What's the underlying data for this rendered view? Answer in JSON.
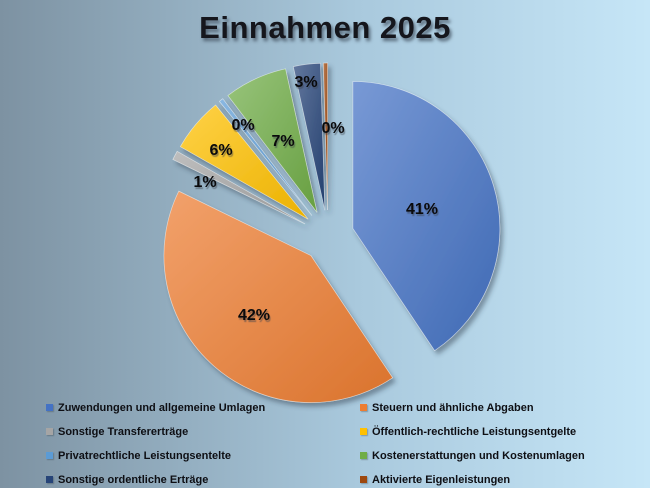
{
  "title": "Einnahmen 2025",
  "background": {
    "gradient_left": "#7D92A2",
    "gradient_mid": "#A9C9DD",
    "gradient_right": "#C6E6F7"
  },
  "chart_data": {
    "type": "pie",
    "style": "exploded",
    "title": "Einnahmen 2025",
    "unit": "percent",
    "categories": [
      "Zuwendungen und allgemeine Umlagen",
      "Steuern und ähnliche Abgaben",
      "Sonstige Transfererträge",
      "Öffentlich-rechtliche Leistungsentgelte",
      "Privatrechtliche Leistungsentelte",
      "Kostenerstattungen und Kostenumlagen",
      "Sonstige ordentliche Erträge",
      "Aktivierte Eigenleistungen"
    ],
    "values": [
      41,
      42,
      1,
      6,
      0,
      7,
      3,
      0
    ],
    "labels": [
      "41%",
      "42%",
      "1%",
      "6%",
      "0%",
      "7%",
      "3%",
      "0%"
    ],
    "colors": [
      "#4472C4",
      "#ED7D31",
      "#A5A5A5",
      "#FFC000",
      "#5B9BD5",
      "#70AD47",
      "#264478",
      "#9E480E"
    ],
    "legend_position": "bottom",
    "legend_columns": 2
  }
}
